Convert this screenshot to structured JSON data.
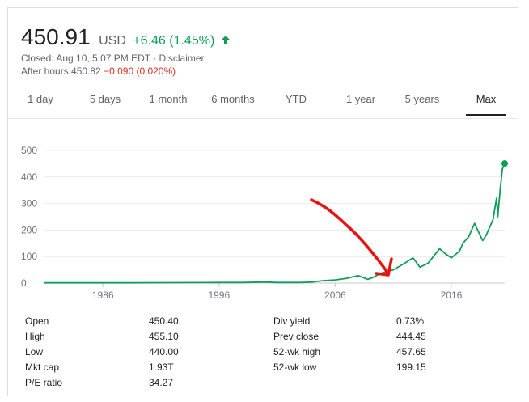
{
  "quote": {
    "price": "450.91",
    "currency": "USD",
    "change": "+6.46 (1.45%)",
    "change_direction": "up",
    "closed": "Closed: Aug 10, 5:07 PM EDT · Disclaimer",
    "after_hours_label": "After hours 450.82",
    "after_hours_change": "−0.090 (0.020%)"
  },
  "tabs": [
    {
      "label": "1 day"
    },
    {
      "label": "5 days"
    },
    {
      "label": "1 month"
    },
    {
      "label": "6 months"
    },
    {
      "label": "YTD"
    },
    {
      "label": "1 year"
    },
    {
      "label": "5 years"
    },
    {
      "label": "Max",
      "active": true
    }
  ],
  "colors": {
    "line": "#0f9d58",
    "annotation": "#e8120f",
    "positive": "#0f9d58",
    "negative": "#d93025"
  },
  "chart_data": {
    "type": "line",
    "y_ticks": [
      "500",
      "400",
      "300",
      "200",
      "100",
      "0"
    ],
    "x_ticks": [
      "1986",
      "1996",
      "2006",
      "2016"
    ],
    "xlim": [
      1980.9,
      2020.6
    ],
    "ylim": [
      0,
      500
    ],
    "grid": true,
    "series": [
      {
        "x": [
          1980.95,
          1984,
          1988,
          1992,
          1996,
          1998,
          2000,
          2001,
          2002,
          2003,
          2004,
          2005,
          2006,
          2007,
          2008,
          2008.8,
          2009.2,
          2010,
          2011,
          2012,
          2012.7,
          2013.3,
          2014,
          2015,
          2015.5,
          2016,
          2016.7,
          2017,
          2017.5,
          2018,
          2018.7,
          2019,
          2019.6,
          2019.9,
          2020,
          2020.2,
          2020.4,
          2020.6
        ],
        "y": [
          1,
          1,
          1,
          1.5,
          2,
          2,
          4,
          2,
          2,
          2,
          4,
          9,
          12,
          18,
          28,
          14,
          20,
          38,
          50,
          75,
          95,
          60,
          75,
          130,
          110,
          95,
          120,
          150,
          175,
          225,
          160,
          180,
          240,
          320,
          250,
          350,
          430,
          450.91
        ]
      }
    ],
    "annotation": "red hand-drawn arrow pointing at the curve around 2011"
  },
  "stats": {
    "left": [
      {
        "label": "Open",
        "value": "450.40"
      },
      {
        "label": "High",
        "value": "455.10"
      },
      {
        "label": "Low",
        "value": "440.00"
      },
      {
        "label": "Mkt cap",
        "value": "1.93T"
      },
      {
        "label": "P/E ratio",
        "value": "34.27"
      }
    ],
    "right": [
      {
        "label": "Div yield",
        "value": "0.73%"
      },
      {
        "label": "Prev close",
        "value": "444.45"
      },
      {
        "label": "52-wk high",
        "value": "457.65"
      },
      {
        "label": "52-wk low",
        "value": "199.15"
      }
    ]
  }
}
